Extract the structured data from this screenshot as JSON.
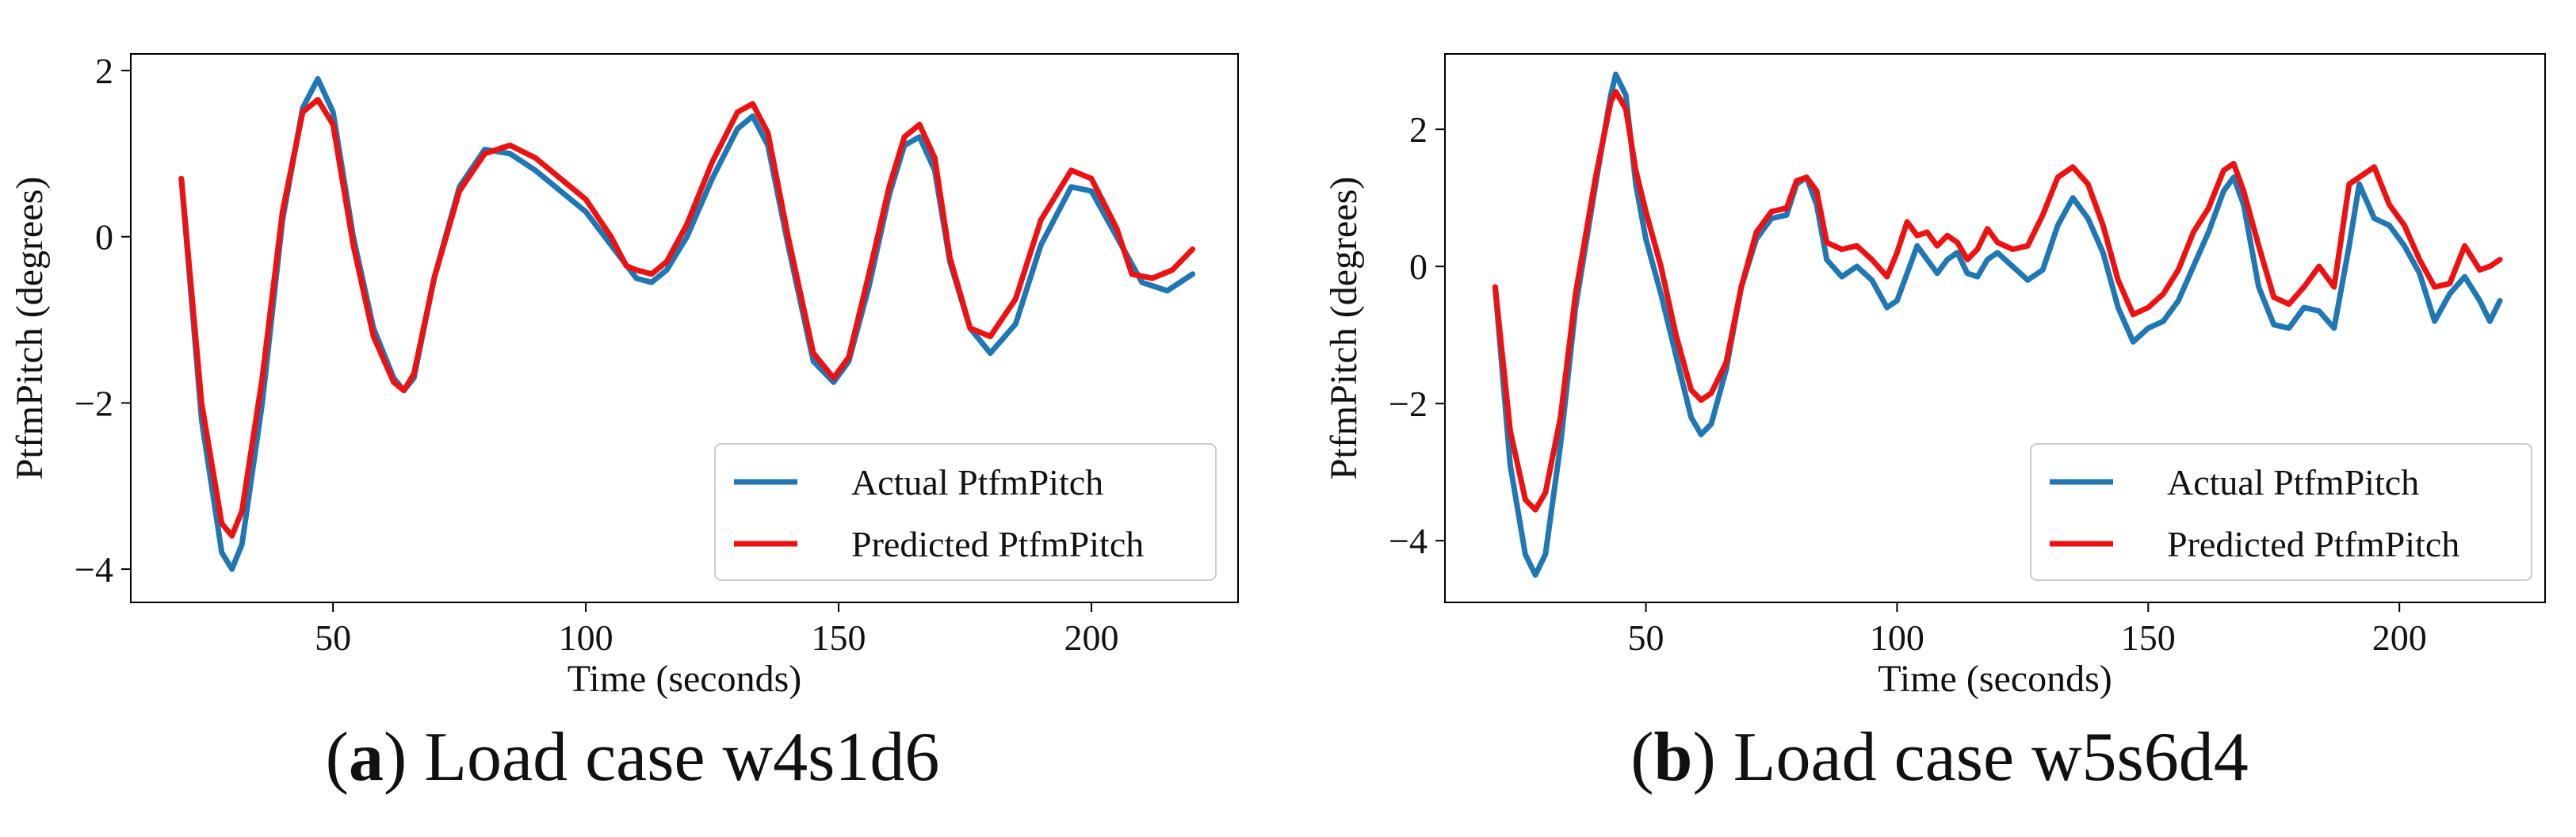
{
  "panels": [
    {
      "caption_letter": "a",
      "caption_text": " Load case w4s1d6",
      "legend_actual": "Actual PtfmPitch",
      "legend_predicted": "Predicted PtfmPitch"
    },
    {
      "caption_letter": "b",
      "caption_text": " Load case w5s6d4",
      "legend_actual": "Actual PtfmPitch",
      "legend_predicted": "Predicted PtfmPitch"
    }
  ],
  "colors": {
    "actual": "#1f77b4",
    "predicted": "#ee1111",
    "axis": "#000000"
  },
  "chart_data": [
    {
      "type": "line",
      "title": "",
      "xlabel": "Time (seconds)",
      "ylabel": "PtfmPitch (degrees)",
      "xlim": [
        10,
        229
      ],
      "ylim": [
        -4.4,
        2.2
      ],
      "xticks": [
        50,
        100,
        150,
        200
      ],
      "yticks": [
        -4,
        -2,
        0,
        2
      ],
      "xtick_labels": [
        "50",
        "100",
        "150",
        "200"
      ],
      "ytick_labels": [
        "−4",
        "−2",
        "0",
        "2"
      ],
      "legend_position": "lower-right",
      "series": [
        {
          "name": "Actual PtfmPitch",
          "color": "#1f77b4",
          "x": [
            20,
            24,
            28,
            30,
            32,
            36,
            40,
            44,
            47,
            50,
            54,
            58,
            62,
            64,
            66,
            70,
            75,
            80,
            85,
            90,
            95,
            100,
            105,
            110,
            113,
            116,
            120,
            125,
            130,
            133,
            136,
            140,
            145,
            149,
            152,
            156,
            160,
            163,
            166,
            169,
            172,
            176,
            180,
            185,
            190,
            196,
            200,
            205,
            210,
            215,
            220
          ],
          "y": [
            0.7,
            -2.2,
            -3.8,
            -4.0,
            -3.7,
            -2.0,
            0.2,
            1.55,
            1.9,
            1.5,
            0.0,
            -1.1,
            -1.7,
            -1.85,
            -1.7,
            -0.5,
            0.6,
            1.05,
            1.0,
            0.8,
            0.55,
            0.3,
            -0.1,
            -0.5,
            -0.55,
            -0.4,
            0.0,
            0.7,
            1.3,
            1.45,
            1.1,
            -0.1,
            -1.5,
            -1.75,
            -1.5,
            -0.6,
            0.5,
            1.1,
            1.2,
            0.8,
            -0.3,
            -1.1,
            -1.4,
            -1.05,
            -0.1,
            0.6,
            0.55,
            0.0,
            -0.55,
            -0.65,
            -0.45
          ]
        },
        {
          "name": "Predicted PtfmPitch",
          "color": "#ee1111",
          "x": [
            20,
            24,
            28,
            30,
            32,
            36,
            40,
            44,
            47,
            50,
            54,
            58,
            62,
            64,
            66,
            70,
            75,
            80,
            85,
            90,
            95,
            100,
            105,
            108,
            110,
            113,
            116,
            120,
            125,
            130,
            133,
            136,
            140,
            145,
            149,
            152,
            156,
            160,
            163,
            166,
            169,
            172,
            176,
            180,
            185,
            190,
            196,
            200,
            205,
            208,
            212,
            216,
            220
          ],
          "y": [
            0.7,
            -2.0,
            -3.45,
            -3.6,
            -3.3,
            -1.7,
            0.3,
            1.5,
            1.65,
            1.35,
            -0.1,
            -1.2,
            -1.75,
            -1.85,
            -1.65,
            -0.5,
            0.55,
            1.0,
            1.1,
            0.95,
            0.7,
            0.45,
            0.0,
            -0.35,
            -0.4,
            -0.45,
            -0.3,
            0.15,
            0.9,
            1.5,
            1.6,
            1.25,
            0.0,
            -1.4,
            -1.7,
            -1.45,
            -0.45,
            0.6,
            1.2,
            1.35,
            0.95,
            -0.25,
            -1.1,
            -1.2,
            -0.75,
            0.2,
            0.8,
            0.7,
            0.1,
            -0.45,
            -0.5,
            -0.4,
            -0.15
          ]
        }
      ]
    },
    {
      "type": "line",
      "title": "",
      "xlabel": "Time (seconds)",
      "ylabel": "PtfmPitch (degrees)",
      "xlim": [
        10,
        229
      ],
      "ylim": [
        -4.9,
        3.1
      ],
      "xticks": [
        50,
        100,
        150,
        200
      ],
      "yticks": [
        -4,
        -2,
        0,
        2
      ],
      "xtick_labels": [
        "50",
        "100",
        "150",
        "200"
      ],
      "ytick_labels": [
        "−4",
        "−2",
        "0",
        "2"
      ],
      "legend_position": "lower-right",
      "series": [
        {
          "name": "Actual PtfmPitch",
          "color": "#1f77b4",
          "x": [
            20,
            23,
            26,
            28,
            30,
            33,
            36,
            40,
            43,
            44,
            46,
            48,
            50,
            53,
            56,
            59,
            61,
            63,
            66,
            69,
            72,
            75,
            78,
            80,
            82,
            84,
            86,
            89,
            92,
            95,
            98,
            100,
            102,
            104,
            106,
            108,
            110,
            112,
            114,
            116,
            118,
            120,
            123,
            126,
            129,
            132,
            135,
            138,
            141,
            144,
            147,
            150,
            153,
            156,
            159,
            162,
            165,
            167,
            169,
            172,
            175,
            178,
            181,
            184,
            187,
            190,
            192,
            195,
            198,
            201,
            204,
            207,
            210,
            213,
            216,
            218,
            220
          ],
          "y": [
            -0.3,
            -2.9,
            -4.2,
            -4.5,
            -4.2,
            -2.6,
            -0.6,
            1.2,
            2.5,
            2.8,
            2.5,
            1.2,
            0.4,
            -0.4,
            -1.3,
            -2.2,
            -2.45,
            -2.3,
            -1.5,
            -0.3,
            0.4,
            0.7,
            0.75,
            1.2,
            1.3,
            0.9,
            0.1,
            -0.15,
            0.0,
            -0.2,
            -0.6,
            -0.5,
            -0.1,
            0.3,
            0.1,
            -0.1,
            0.1,
            0.2,
            -0.1,
            -0.15,
            0.1,
            0.2,
            0.0,
            -0.2,
            -0.05,
            0.6,
            1.0,
            0.7,
            0.2,
            -0.6,
            -1.1,
            -0.9,
            -0.8,
            -0.5,
            0.0,
            0.5,
            1.1,
            1.3,
            0.9,
            -0.3,
            -0.85,
            -0.9,
            -0.6,
            -0.65,
            -0.9,
            0.3,
            1.2,
            0.7,
            0.6,
            0.3,
            -0.1,
            -0.8,
            -0.4,
            -0.15,
            -0.5,
            -0.8,
            -0.5
          ]
        },
        {
          "name": "Predicted PtfmPitch",
          "color": "#ee1111",
          "x": [
            20,
            23,
            26,
            28,
            30,
            33,
            36,
            40,
            43,
            44,
            46,
            48,
            50,
            53,
            56,
            59,
            61,
            63,
            66,
            69,
            72,
            75,
            78,
            80,
            82,
            84,
            86,
            89,
            92,
            95,
            98,
            100,
            102,
            104,
            106,
            108,
            110,
            112,
            114,
            116,
            118,
            120,
            123,
            126,
            129,
            132,
            135,
            138,
            141,
            144,
            147,
            150,
            153,
            156,
            159,
            162,
            165,
            167,
            169,
            172,
            175,
            178,
            181,
            184,
            187,
            190,
            192,
            195,
            198,
            201,
            204,
            207,
            210,
            213,
            216,
            218,
            220
          ],
          "y": [
            -0.3,
            -2.4,
            -3.4,
            -3.55,
            -3.3,
            -2.2,
            -0.4,
            1.3,
            2.4,
            2.55,
            2.3,
            1.4,
            0.8,
            0.0,
            -1.0,
            -1.8,
            -1.95,
            -1.85,
            -1.4,
            -0.3,
            0.5,
            0.8,
            0.85,
            1.25,
            1.3,
            1.1,
            0.35,
            0.25,
            0.3,
            0.1,
            -0.15,
            0.2,
            0.65,
            0.45,
            0.5,
            0.3,
            0.45,
            0.35,
            0.1,
            0.25,
            0.55,
            0.35,
            0.25,
            0.3,
            0.75,
            1.3,
            1.45,
            1.2,
            0.6,
            -0.2,
            -0.7,
            -0.6,
            -0.4,
            -0.05,
            0.5,
            0.85,
            1.4,
            1.5,
            1.1,
            0.3,
            -0.45,
            -0.55,
            -0.3,
            0.0,
            -0.3,
            1.2,
            1.3,
            1.45,
            0.9,
            0.6,
            0.1,
            -0.3,
            -0.25,
            0.3,
            -0.05,
            0.0,
            0.1
          ]
        }
      ]
    }
  ]
}
